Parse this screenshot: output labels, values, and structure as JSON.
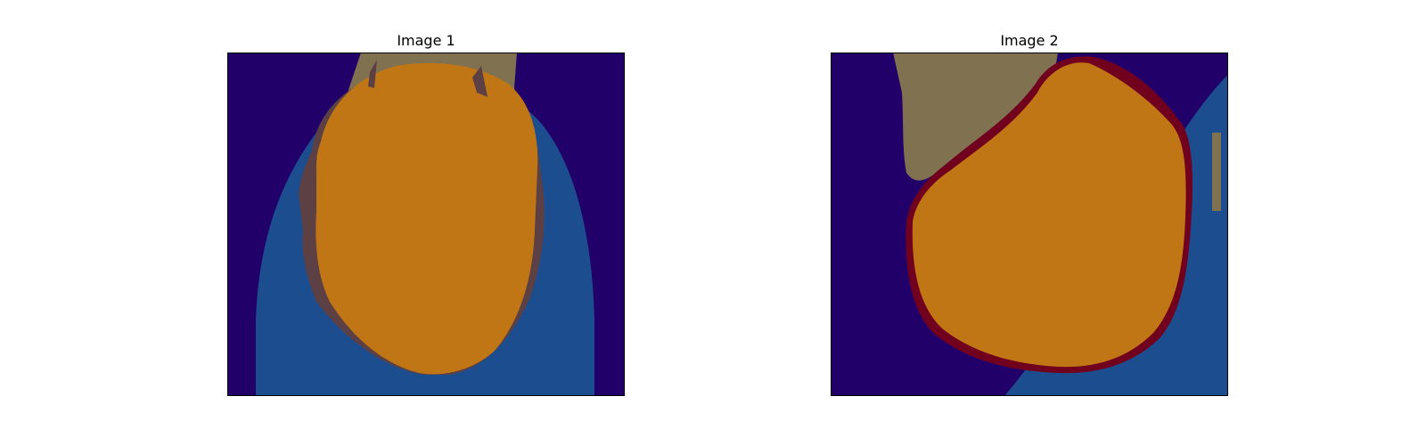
{
  "panels": [
    {
      "title": "Image 1"
    },
    {
      "title": "Image 2"
    }
  ],
  "colors": {
    "background_dark": "#22006a",
    "tissue_blue": "#1c4e8f",
    "mask_orange": "#c07614",
    "khaki": "#807250",
    "shadow_brown": "#5c4043",
    "dark_red": "#70001e",
    "frame": "#000000"
  }
}
